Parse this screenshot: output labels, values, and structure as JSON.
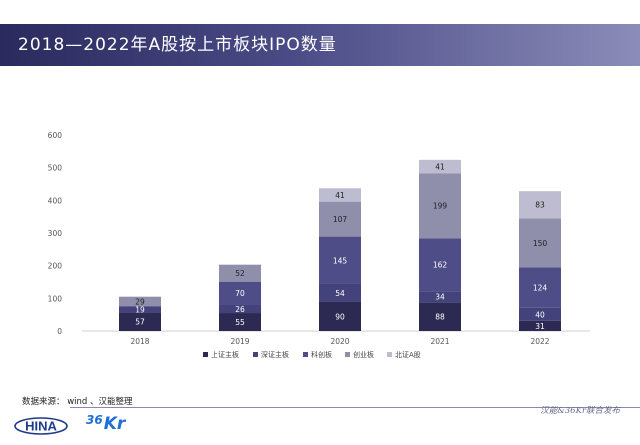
{
  "header": {
    "title": "2018—2022年A股按上市板块IPO数量"
  },
  "chart_data": {
    "type": "bar",
    "stacked": true,
    "categories": [
      "2018",
      "2019",
      "2020",
      "2021",
      "2022"
    ],
    "series": [
      {
        "name": "上证主板",
        "color": "#2c2a52",
        "values": [
          57,
          55,
          90,
          88,
          31
        ]
      },
      {
        "name": "深证主板",
        "color": "#44427a",
        "values": [
          19,
          26,
          54,
          34,
          40
        ]
      },
      {
        "name": "科创板",
        "color": "#4f4d87",
        "values": [
          0,
          70,
          145,
          162,
          124
        ]
      },
      {
        "name": "创业板",
        "color": "#8f8eab",
        "values": [
          29,
          52,
          107,
          199,
          150
        ]
      },
      {
        "name": "北证A股",
        "color": "#bdbcd0",
        "values": [
          0,
          0,
          41,
          41,
          83
        ]
      }
    ],
    "ylim": [
      0,
      600
    ],
    "yticks": [
      "0",
      "100",
      "200",
      "300",
      "400",
      "500",
      "600"
    ],
    "grid": false,
    "legend_position": "bottom"
  },
  "footer": {
    "source": "数据来源： wind 、汉能整理",
    "note": "汉能&36Kr联合发布",
    "logo_hina_text": "HINA",
    "logo_36kr_36": "36",
    "logo_36kr_kr": "Kr"
  }
}
